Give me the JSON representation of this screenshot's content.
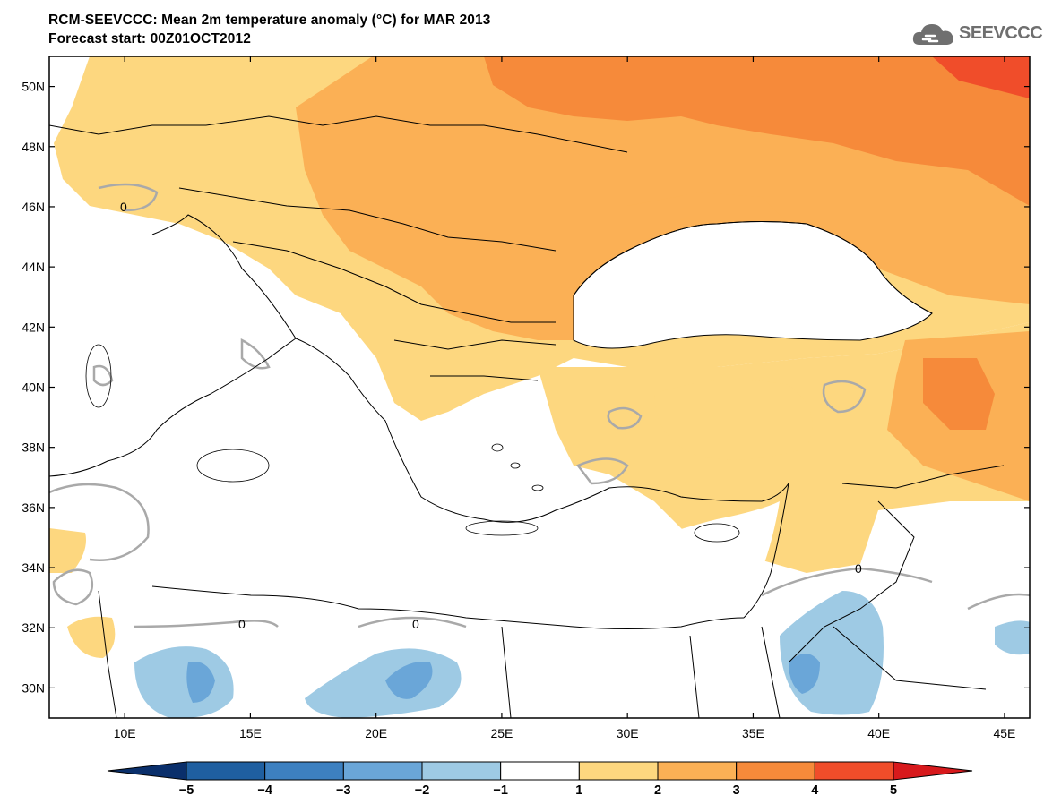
{
  "header": {
    "title": "RCM-SEEVCCC: Mean 2m temperature anomaly (°C) for MAR 2013",
    "subtitle": "Forecast start: 00Z01OCT2012"
  },
  "logo": {
    "text": "SEEVCCC",
    "icon": "cloud-icon"
  },
  "map": {
    "lon_range": [
      7,
      46
    ],
    "lat_range": [
      29,
      51
    ],
    "lat_ticks": [
      "50N",
      "48N",
      "46N",
      "44N",
      "42N",
      "40N",
      "38N",
      "36N",
      "34N",
      "32N",
      "30N"
    ],
    "lon_ticks": [
      "10E",
      "15E",
      "20E",
      "25E",
      "30E",
      "35E",
      "40E",
      "45E"
    ],
    "contour_label": "0"
  },
  "colorbar": {
    "labels": [
      "−5",
      "−4",
      "−3",
      "−2",
      "−1",
      "1",
      "2",
      "3",
      "4",
      "5"
    ],
    "colors": [
      "#0a2f6b",
      "#1f5fa0",
      "#3d80c0",
      "#6aa6d8",
      "#9ecae4",
      "#ffffff",
      "#fdd77f",
      "#fbb055",
      "#f68a3a",
      "#f04d2a",
      "#d7191c"
    ]
  }
}
